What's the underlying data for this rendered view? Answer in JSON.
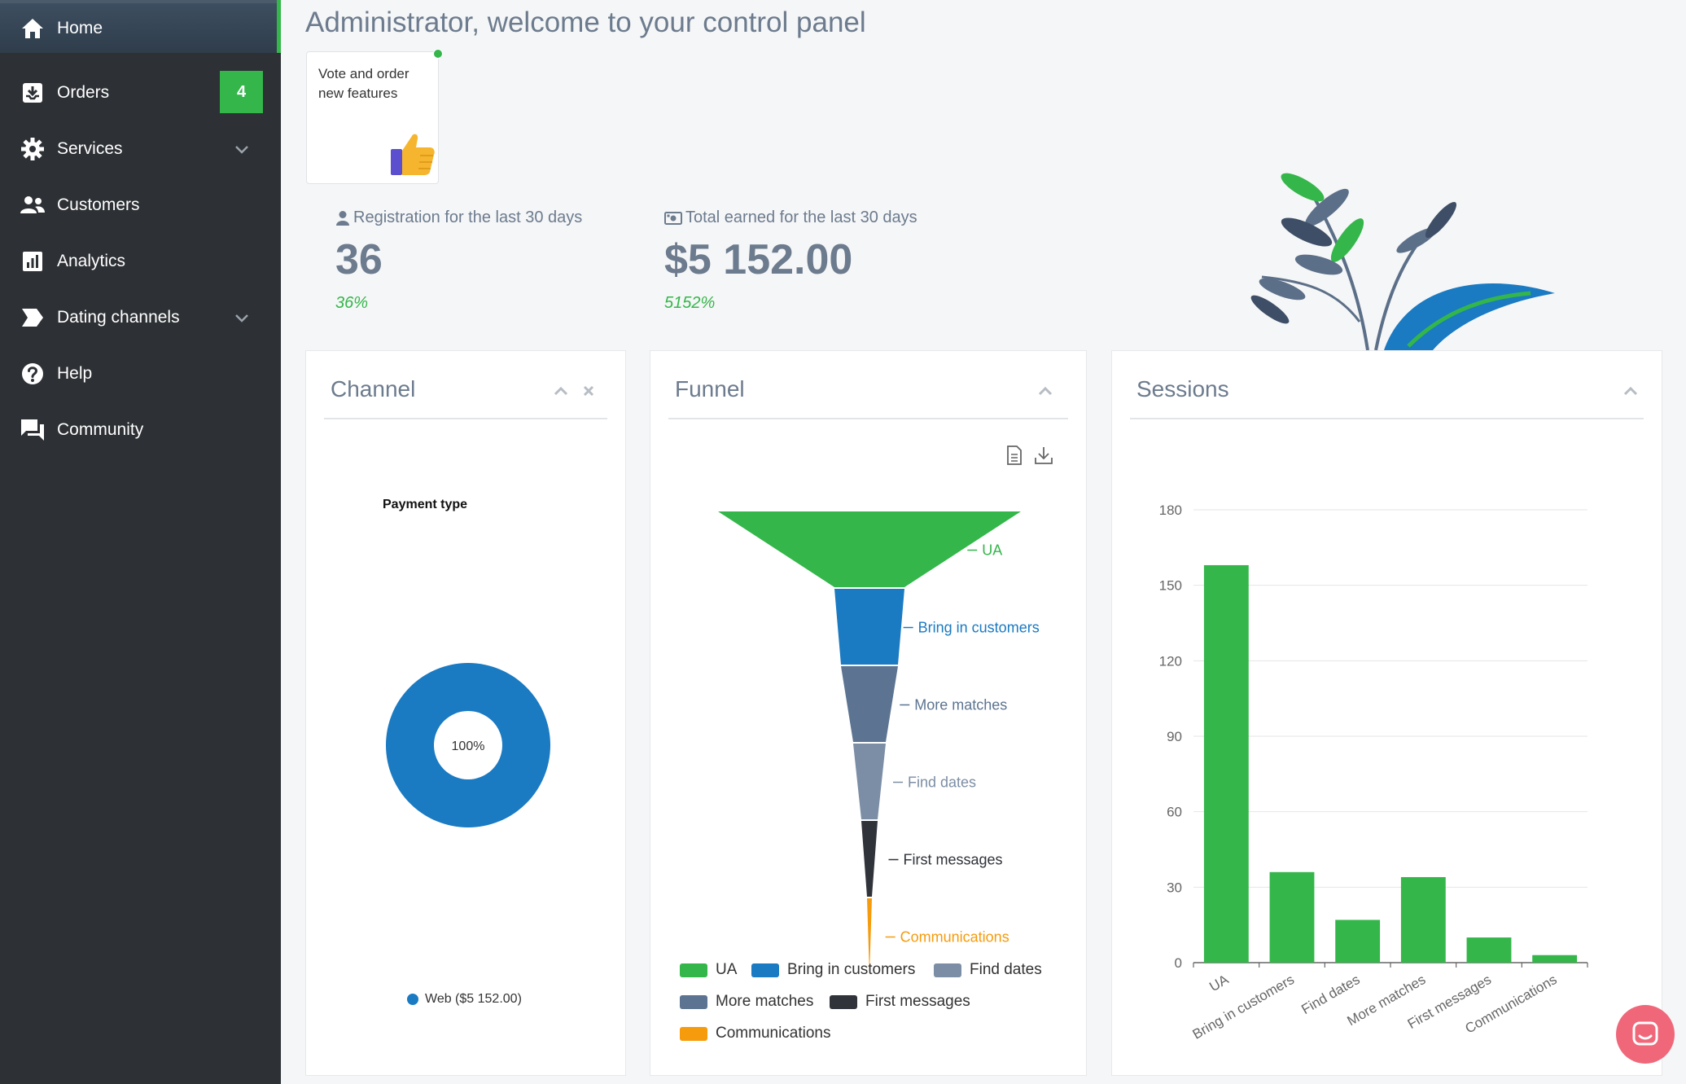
{
  "sidebar": {
    "items": [
      {
        "label": "Home",
        "icon": "home-icon"
      },
      {
        "label": "Orders",
        "icon": "download-box-icon",
        "badge": "4"
      },
      {
        "label": "Services",
        "icon": "gear-icon"
      },
      {
        "label": "Customers",
        "icon": "users-icon"
      },
      {
        "label": "Analytics",
        "icon": "bar-chart-icon"
      },
      {
        "label": "Dating channels",
        "icon": "tag-arrow-icon"
      },
      {
        "label": "Help",
        "icon": "help-circle-icon"
      },
      {
        "label": "Community",
        "icon": "chat-bubbles-icon"
      }
    ]
  },
  "header": {
    "title": "Administrator, welcome to your control panel"
  },
  "vote_card": {
    "text": "Vote and order new features"
  },
  "stats": {
    "registration": {
      "label": "Registration for the last 30 days",
      "value": "36",
      "percent": "36%"
    },
    "earned": {
      "label": "Total earned for the last 30 days",
      "value": "$5 152.00",
      "percent": "5152%"
    }
  },
  "panels": {
    "channel": {
      "title": "Channel"
    },
    "funnel": {
      "title": "Funnel"
    },
    "sessions": {
      "title": "Sessions"
    }
  },
  "chart_data": [
    {
      "type": "pie",
      "title": "Payment type",
      "slices": [
        {
          "label": "Web ($5 152.00)",
          "value": 100,
          "display": "100%",
          "color": "#1a7ac2"
        }
      ]
    },
    {
      "type": "funnel",
      "stages": [
        {
          "label": "UA",
          "color": "#34b64b"
        },
        {
          "label": "Bring in customers",
          "color": "#1a7ac2"
        },
        {
          "label": "More matches",
          "color": "#5c7491"
        },
        {
          "label": "Find dates",
          "color": "#7c8ea5"
        },
        {
          "label": "First messages",
          "color": "#30333a"
        },
        {
          "label": "Communications",
          "color": "#f59b0c"
        }
      ],
      "legend": [
        "UA",
        "Bring in customers",
        "Find dates",
        "More matches",
        "First messages",
        "Communications"
      ]
    },
    {
      "type": "bar",
      "categories": [
        "UA",
        "Bring in customers",
        "Find dates",
        "More matches",
        "First messages",
        "Communications"
      ],
      "values": [
        158,
        36,
        17,
        34,
        10,
        3
      ],
      "ylim": [
        0,
        180
      ],
      "yticks": [
        "0",
        "30",
        "60",
        "90",
        "120",
        "150",
        "180"
      ],
      "color": "#34b64b",
      "grid": true
    }
  ],
  "colors": {
    "accent": "#34b64b",
    "sidebar": "#2d3034",
    "blue": "#1a7ac2",
    "chat": "#f0677a"
  }
}
